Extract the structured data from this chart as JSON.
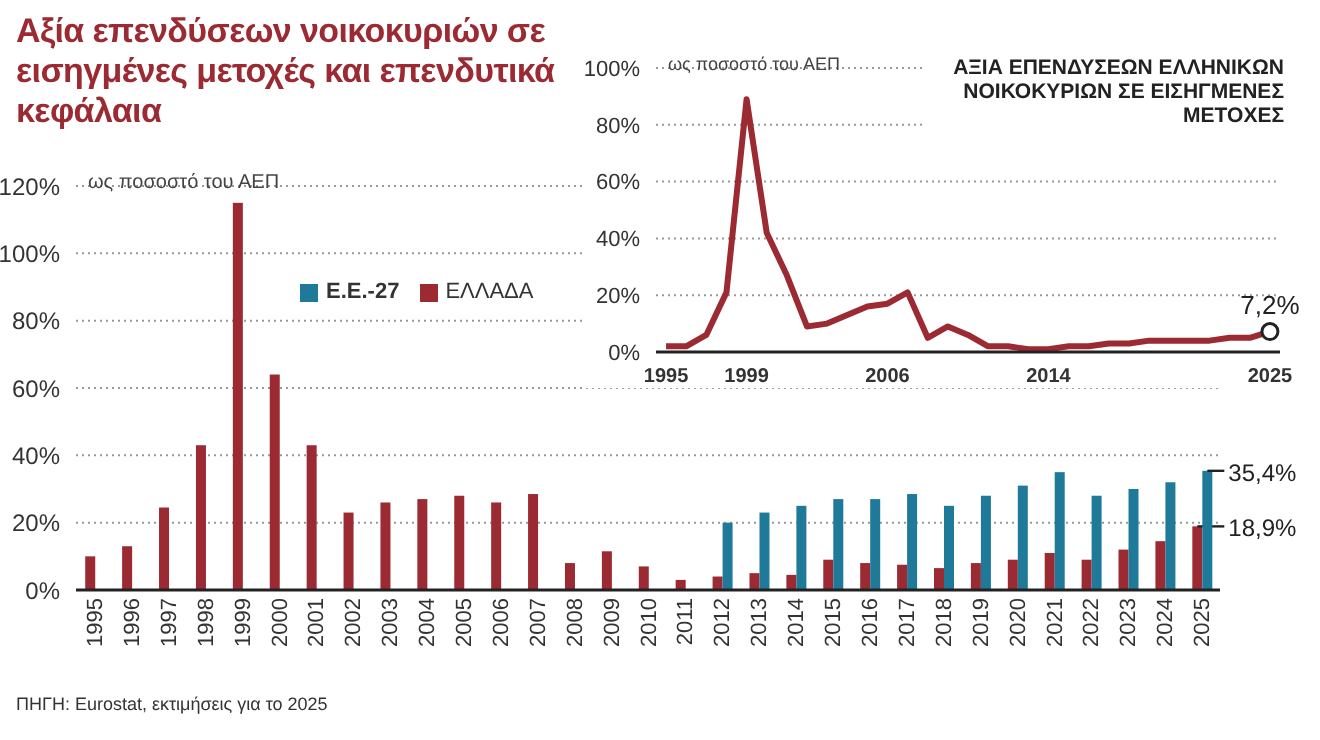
{
  "chart_data": [
    {
      "type": "bar",
      "title": "Αξία επενδύσεων νοικοκυριών σε εισηγμένες μετοχές και επενδυτικά κεφάλαια",
      "ylabel": "ως ποσοστό του ΑΕΠ",
      "categories": [
        "1995",
        "1996",
        "1997",
        "1998",
        "1999",
        "2000",
        "2001",
        "2002",
        "2003",
        "2004",
        "2005",
        "2006",
        "2007",
        "2008",
        "2009",
        "2010",
        "2011",
        "2012",
        "2013",
        "2014",
        "2015",
        "2016",
        "2017",
        "2018",
        "2019",
        "2020",
        "2021",
        "2022",
        "2023",
        "2024",
        "2025"
      ],
      "series": [
        {
          "name": "ΕΛΛΑΔΑ",
          "color": "#9b2a32",
          "values": [
            10,
            13,
            24.5,
            43,
            115,
            64,
            43,
            23,
            26,
            27,
            28,
            26,
            28.5,
            8,
            11.5,
            7,
            3,
            4,
            5,
            4.5,
            9,
            8,
            7.5,
            6.5,
            8,
            9,
            11,
            9,
            12,
            14.5,
            18.9
          ],
          "value_labels": [
            null,
            null,
            null,
            null,
            null,
            null,
            null,
            null,
            null,
            null,
            null,
            null,
            null,
            null,
            null,
            null,
            null,
            null,
            null,
            null,
            null,
            null,
            null,
            null,
            null,
            null,
            null,
            null,
            null,
            null,
            "18,9%"
          ]
        },
        {
          "name": "Ε.Ε.-27",
          "color": "#1f7a9a",
          "values": [
            null,
            null,
            null,
            null,
            null,
            null,
            null,
            null,
            null,
            null,
            null,
            null,
            null,
            null,
            null,
            null,
            null,
            20,
            23,
            25,
            27,
            27,
            28.5,
            25,
            28,
            31,
            35,
            28,
            30,
            32,
            35.4
          ],
          "value_labels": [
            null,
            null,
            null,
            null,
            null,
            null,
            null,
            null,
            null,
            null,
            null,
            null,
            null,
            null,
            null,
            null,
            null,
            null,
            null,
            null,
            null,
            null,
            null,
            null,
            null,
            null,
            null,
            null,
            null,
            null,
            "35,4%"
          ]
        }
      ],
      "ylim": [
        0,
        120
      ],
      "yticks": [
        {
          "value": 0,
          "label": "0%"
        },
        {
          "value": 20,
          "label": "20%"
        },
        {
          "value": 40,
          "label": "40%"
        },
        {
          "value": 60,
          "label": "60%"
        },
        {
          "value": 80,
          "label": "80%"
        },
        {
          "value": 100,
          "label": "100%"
        },
        {
          "value": 120,
          "label": "120%"
        }
      ],
      "grid": "y",
      "legend": "top left",
      "annotations": [
        "ΠΗΓΗ: Eurostat, εκτιμήσεις για το 2025"
      ]
    },
    {
      "type": "line",
      "title": "ΑΞΙΑ ΕΠΕΝΔΥΣΕΩΝ ΕΛΛΗΝΙΚΩΝ ΝΟΙΚΟΚΥΡΙΩΝ ΣΕ ΕΙΣΗΓΜΕΝΕΣ ΜΕΤΟΧΕΣ",
      "ylabel": "ως ποσοστό του ΑΕΠ",
      "x": [
        1995,
        1996,
        1997,
        1998,
        1999,
        2000,
        2001,
        2002,
        2003,
        2004,
        2005,
        2006,
        2007,
        2008,
        2009,
        2010,
        2011,
        2012,
        2013,
        2014,
        2015,
        2016,
        2017,
        2018,
        2019,
        2020,
        2021,
        2022,
        2023,
        2024,
        2025
      ],
      "series": [
        {
          "color": "#9b2a32",
          "values": [
            2,
            2,
            6,
            21,
            89,
            42,
            27,
            9,
            10,
            13,
            16,
            17,
            21,
            5,
            9,
            6,
            2,
            2,
            1,
            1,
            2,
            2,
            3,
            3,
            4,
            4,
            4,
            4,
            5,
            5,
            7.2
          ],
          "value_labels": [
            null,
            null,
            null,
            null,
            null,
            null,
            null,
            null,
            null,
            null,
            null,
            null,
            null,
            null,
            null,
            null,
            null,
            null,
            null,
            null,
            null,
            null,
            null,
            null,
            null,
            null,
            null,
            null,
            null,
            null,
            "7,2%"
          ]
        }
      ],
      "xlim": [
        1994.5,
        2025.5
      ],
      "xticks": [
        1995,
        1999,
        2006,
        2014,
        2025
      ],
      "ylim": [
        0,
        100
      ],
      "yticks": [
        {
          "value": 0,
          "label": "0%"
        },
        {
          "value": 20,
          "label": "20%"
        },
        {
          "value": 40,
          "label": "40%"
        },
        {
          "value": 60,
          "label": "60%"
        },
        {
          "value": 80,
          "label": "80%"
        },
        {
          "value": 100,
          "label": "100%"
        }
      ],
      "grid": "y",
      "marker": "none"
    }
  ]
}
